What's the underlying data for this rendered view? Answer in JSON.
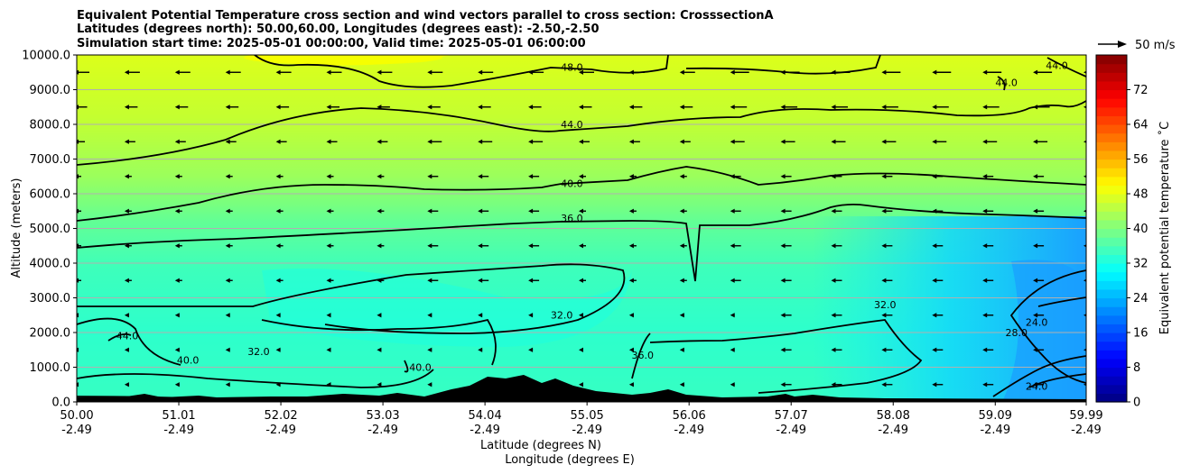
{
  "chart_data": {
    "type": "heatmap",
    "title_lines": [
      "Equivalent Potential Temperature cross section and wind vectors parallel to cross section: CrosssectionA",
      "Latitudes (degrees north): 50.00,60.00, Longitudes (degrees east): -2.50,-2.50",
      "Simulation start time: 2025-05-01 00:00:00, Valid time: 2025-05-01 06:00:00"
    ],
    "xlabel": "Latitude (degrees N)",
    "xlabel2": "Longitude (degrees E)",
    "ylabel": "Altitude (meters)",
    "x_ticks": [
      {
        "lat": "50.00",
        "lon": "-2.49"
      },
      {
        "lat": "51.01",
        "lon": "-2.49"
      },
      {
        "lat": "52.02",
        "lon": "-2.49"
      },
      {
        "lat": "53.03",
        "lon": "-2.49"
      },
      {
        "lat": "54.04",
        "lon": "-2.49"
      },
      {
        "lat": "55.05",
        "lon": "-2.49"
      },
      {
        "lat": "56.06",
        "lon": "-2.49"
      },
      {
        "lat": "57.07",
        "lon": "-2.49"
      },
      {
        "lat": "58.08",
        "lon": "-2.49"
      },
      {
        "lat": "59.09",
        "lon": "-2.49"
      },
      {
        "lat": "59.99",
        "lon": "-2.49"
      }
    ],
    "xlim": [
      50.0,
      59.99
    ],
    "ylim": [
      0,
      10000
    ],
    "y_ticks": [
      "0.0",
      "1000.0",
      "2000.0",
      "3000.0",
      "4000.0",
      "5000.0",
      "6000.0",
      "7000.0",
      "8000.0",
      "9000.0",
      "10000.0"
    ],
    "grid": true,
    "colorbar": {
      "label": "Equivalent potential temperature ˚C",
      "min": 0,
      "max": 80,
      "ticks": [
        "0",
        "8",
        "16",
        "24",
        "32",
        "40",
        "48",
        "56",
        "64",
        "72"
      ]
    },
    "quiver_key": "50 m/s",
    "contours": [
      {
        "level": "48.0",
        "label_pos": [
          54.9,
          9550
        ]
      },
      {
        "level": "44.0",
        "label_pos": [
          54.9,
          7900
        ]
      },
      {
        "level": "40.0",
        "label_pos": [
          54.9,
          6200
        ]
      },
      {
        "level": "36.0",
        "label_pos": [
          54.9,
          5200
        ]
      },
      {
        "level": "32.0",
        "label_pos": [
          54.8,
          2400
        ]
      },
      {
        "level": "32.0",
        "label_pos": [
          51.8,
          1350
        ]
      },
      {
        "level": "44.0",
        "label_pos": [
          50.5,
          1800
        ]
      },
      {
        "level": "40.0",
        "label_pos": [
          51.1,
          1100
        ]
      },
      {
        "level": "40.0",
        "label_pos": [
          53.4,
          900
        ]
      },
      {
        "level": "36.0",
        "label_pos": [
          55.6,
          1250
        ]
      },
      {
        "level": "32.0",
        "label_pos": [
          58.0,
          2700
        ]
      },
      {
        "level": "28.0",
        "label_pos": [
          59.3,
          1900
        ]
      },
      {
        "level": "24.0",
        "label_pos": [
          59.5,
          2200
        ]
      },
      {
        "level": "24.0",
        "label_pos": [
          59.5,
          350
        ]
      },
      {
        "level": "44.0",
        "label_pos": [
          59.7,
          9600
        ]
      },
      {
        "level": "44.0",
        "label_pos": [
          59.2,
          9100
        ]
      }
    ]
  }
}
